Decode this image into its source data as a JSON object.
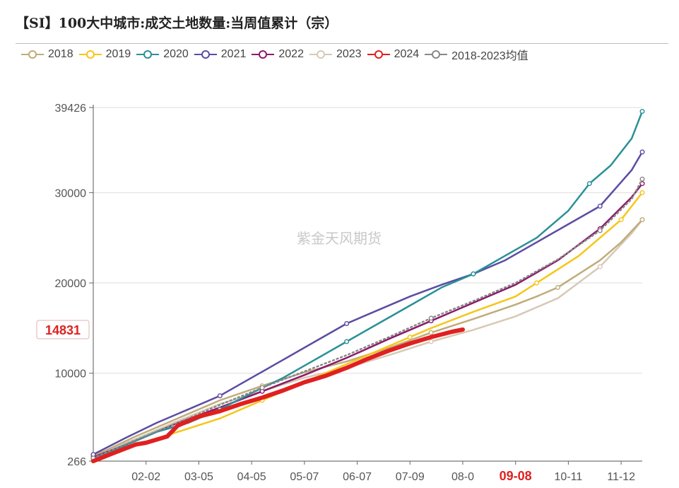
{
  "title": "【SI】100大中城市:成交土地数量:当周值累计（宗）",
  "watermark": "紫金天风期货",
  "chart_data": {
    "type": "line",
    "ylim": [
      266,
      39426
    ],
    "y_ticks": [
      266,
      10000,
      20000,
      30000,
      39426
    ],
    "y_tick_labels": [
      "266",
      "10000",
      "20000",
      "30000",
      "39426"
    ],
    "x_categories": [
      "02-02",
      "03-05",
      "04-05",
      "05-07",
      "06-07",
      "07-09",
      "08-0",
      "09-08",
      "10-11",
      "11-12"
    ],
    "x_range": [
      0,
      52
    ],
    "x_tick_positions": [
      5,
      10,
      15,
      20,
      25,
      30,
      35,
      40,
      45,
      50
    ],
    "highlight_x_label": "09-08",
    "highlight_y_label": "14831",
    "highlight_y_value": 14831,
    "series": [
      {
        "name": "2018",
        "color": "#bfac7a",
        "width": 2.5,
        "x": [
          0,
          4,
          8,
          12,
          16,
          20,
          24,
          28,
          32,
          36,
          40,
          42,
          44,
          46,
          48,
          50,
          52
        ],
        "y": [
          800,
          3000,
          5000,
          7000,
          8600,
          10100,
          11300,
          12800,
          14500,
          16000,
          17600,
          18500,
          19500,
          21000,
          22500,
          24500,
          27000
        ]
      },
      {
        "name": "2019",
        "color": "#f7c518",
        "width": 2.5,
        "x": [
          0,
          4,
          8,
          12,
          16,
          20,
          24,
          28,
          30,
          32,
          36,
          40,
          42,
          44,
          46,
          48,
          50,
          52
        ],
        "y": [
          300,
          2000,
          3500,
          5000,
          7000,
          9000,
          11000,
          13000,
          14000,
          15000,
          16800,
          18500,
          20000,
          21500,
          23000,
          25000,
          27000,
          30000
        ]
      },
      {
        "name": "2020",
        "color": "#2a9096",
        "width": 2.5,
        "x": [
          0,
          3,
          6,
          9,
          12,
          15,
          18,
          21,
          24,
          27,
          30,
          33,
          36,
          39,
          42,
          45,
          47,
          49,
          51,
          52
        ],
        "y": [
          500,
          2000,
          3500,
          4500,
          6000,
          7800,
          9500,
          11500,
          13500,
          15500,
          17500,
          19500,
          21000,
          23000,
          25000,
          28000,
          31000,
          33000,
          36000,
          39000
        ]
      },
      {
        "name": "2021",
        "color": "#5c4ca3",
        "width": 2.5,
        "x": [
          0,
          3,
          6,
          9,
          12,
          15,
          18,
          21,
          24,
          27,
          30,
          33,
          36,
          39,
          42,
          45,
          48,
          51,
          52
        ],
        "y": [
          1000,
          2800,
          4500,
          6000,
          7500,
          9500,
          11500,
          13500,
          15500,
          17000,
          18500,
          19800,
          21000,
          22500,
          24500,
          26500,
          28500,
          32500,
          34500
        ]
      },
      {
        "name": "2022",
        "color": "#8c1a6a",
        "width": 2.5,
        "x": [
          0,
          4,
          8,
          12,
          16,
          20,
          24,
          28,
          32,
          36,
          40,
          44,
          48,
          51,
          52
        ],
        "y": [
          700,
          2500,
          4500,
          6200,
          8000,
          9800,
          11700,
          13800,
          15800,
          17800,
          19800,
          22500,
          26000,
          29500,
          31000
        ]
      },
      {
        "name": "2023",
        "color": "#d7c9b6",
        "width": 2.5,
        "x": [
          0,
          4,
          8,
          12,
          16,
          20,
          24,
          28,
          32,
          36,
          40,
          44,
          48,
          51,
          52
        ],
        "y": [
          900,
          2700,
          4700,
          6600,
          8000,
          9500,
          10600,
          12000,
          13500,
          14800,
          16300,
          18300,
          21800,
          25500,
          27000
        ]
      },
      {
        "name": "2024",
        "color": "#e02020",
        "width": 6,
        "x": [
          0,
          2,
          4,
          5,
          7,
          8,
          10,
          12,
          14,
          16,
          18,
          20,
          22,
          24,
          26,
          28,
          30,
          32,
          34,
          35
        ],
        "y": [
          266,
          1200,
          2100,
          2300,
          3000,
          4200,
          5200,
          5800,
          6600,
          7300,
          8100,
          9000,
          9700,
          10600,
          11600,
          12500,
          13300,
          14000,
          14600,
          14831
        ]
      },
      {
        "name": "2018-2023均值",
        "color": "#888888",
        "width": 2.5,
        "dashed": true,
        "x": [
          0,
          4,
          8,
          12,
          16,
          20,
          24,
          28,
          32,
          36,
          40,
          44,
          48,
          51,
          52
        ],
        "y": [
          600,
          2600,
          4500,
          6500,
          8400,
          10200,
          12000,
          14000,
          16100,
          18000,
          20000,
          22600,
          25800,
          29300,
          31500
        ]
      }
    ]
  }
}
